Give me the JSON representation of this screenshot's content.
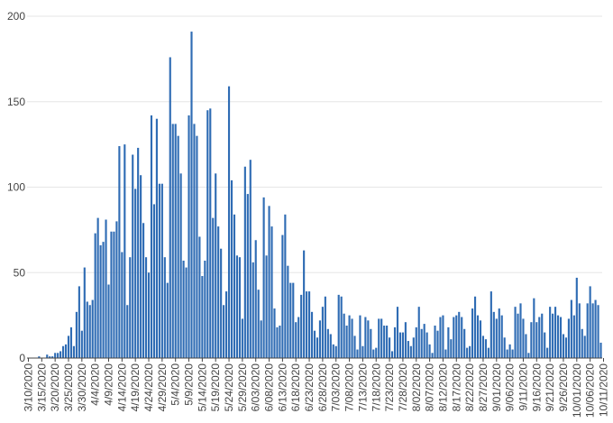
{
  "chart_data": {
    "type": "bar",
    "title": "",
    "xlabel": "",
    "ylabel": "",
    "ylim": [
      0,
      200
    ],
    "y_ticks": [
      0,
      50,
      100,
      150,
      200
    ],
    "grid": "horizontal",
    "start_date": "2020-03-10",
    "x_tick_labels": [
      "3/10/2020",
      "3/15/2020",
      "3/20/2020",
      "3/25/2020",
      "3/30/2020",
      "4/4/2020",
      "4/9/2020",
      "4/14/2020",
      "4/19/2020",
      "4/24/2020",
      "4/29/2020",
      "5/4/2020",
      "5/9/2020",
      "5/14/2020",
      "5/19/2020",
      "5/24/2020",
      "5/29/2020",
      "6/03/2020",
      "6/08/2020",
      "6/13/2020",
      "6/18/2020",
      "6/23/2020",
      "6/28/2020",
      "7/03/2020",
      "7/08/2020",
      "7/13/2020",
      "7/18/2020",
      "7/23/2020",
      "7/28/2020",
      "8/02/2020",
      "8/07/2020",
      "8/12/2020",
      "8/17/2020",
      "8/22/2020",
      "8/27/2020",
      "9/01/2020",
      "9/06/2020",
      "9/11/2020",
      "9/16/2020",
      "9/21/2020",
      "9/26/2020",
      "10/01/2020",
      "10/06/2020",
      "10/11/2020"
    ],
    "values": [
      0,
      0,
      0,
      0,
      1,
      0,
      0,
      2,
      1,
      1,
      3,
      3,
      4,
      7,
      8,
      13,
      18,
      7,
      27,
      42,
      16,
      53,
      33,
      31,
      34,
      73,
      82,
      66,
      68,
      81,
      43,
      74,
      74,
      80,
      124,
      62,
      125,
      31,
      59,
      119,
      99,
      123,
      107,
      79,
      59,
      50,
      142,
      90,
      140,
      102,
      102,
      59,
      44,
      176,
      137,
      137,
      130,
      108,
      57,
      53,
      142,
      191,
      137,
      130,
      71,
      48,
      57,
      145,
      146,
      82,
      108,
      77,
      64,
      31,
      39,
      159,
      104,
      84,
      60,
      59,
      23,
      112,
      96,
      116,
      56,
      69,
      40,
      22,
      94,
      60,
      89,
      77,
      29,
      18,
      19,
      72,
      84,
      54,
      44,
      44,
      21,
      24,
      37,
      63,
      39,
      39,
      27,
      16,
      12,
      22,
      30,
      36,
      17,
      14,
      8,
      7,
      37,
      36,
      26,
      19,
      25,
      23,
      13,
      5,
      25,
      7,
      24,
      22,
      17,
      5,
      6,
      23,
      23,
      19,
      19,
      12,
      4,
      18,
      30,
      15,
      15,
      21,
      10,
      7,
      12,
      18,
      30,
      17,
      20,
      15,
      8,
      3,
      19,
      16,
      24,
      25,
      5,
      18,
      11,
      24,
      25,
      27,
      24,
      17,
      6,
      7,
      29,
      36,
      25,
      22,
      13,
      11,
      6,
      39,
      27,
      23,
      29,
      25,
      12,
      5,
      8,
      5,
      30,
      26,
      32,
      23,
      14,
      3,
      21,
      35,
      21,
      24,
      26,
      15,
      6,
      30,
      26,
      30,
      25,
      24,
      14,
      12,
      23,
      34,
      25,
      47,
      32,
      17,
      13,
      32,
      42,
      32,
      34,
      31,
      9
    ]
  }
}
